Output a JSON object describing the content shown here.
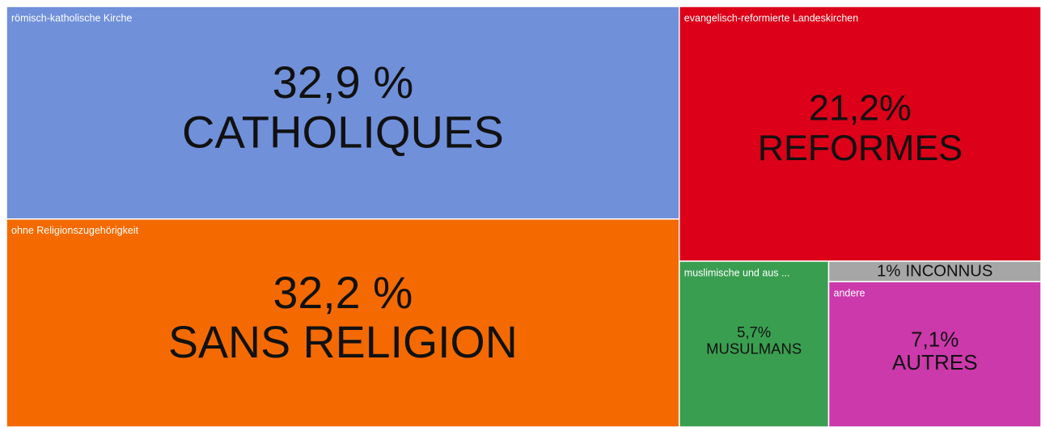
{
  "chart_data": {
    "type": "treemap",
    "categories": [
      "römisch-katholische Kirche",
      "ohne Religionszugehörigkeit",
      "evangelisch-reformierte Landeskirchen",
      "muslimische und aus ...",
      "andere",
      null
    ],
    "values": [
      32.9,
      32.2,
      21.2,
      5.7,
      7.1,
      1
    ],
    "value_labels": [
      "32,9 %",
      "32,2 %",
      "21,2%",
      "5,7%",
      "7,1%",
      "1%"
    ],
    "captions": [
      "CATHOLIQUES",
      "SANS RELIGION",
      "REFORMES",
      "MUSULMANS",
      "AUTRES",
      "INCONNUS"
    ],
    "colors": [
      "#7090da",
      "#f46a00",
      "#dc0019",
      "#3a9e50",
      "#cc39ab",
      "#a6a6a6"
    ]
  }
}
